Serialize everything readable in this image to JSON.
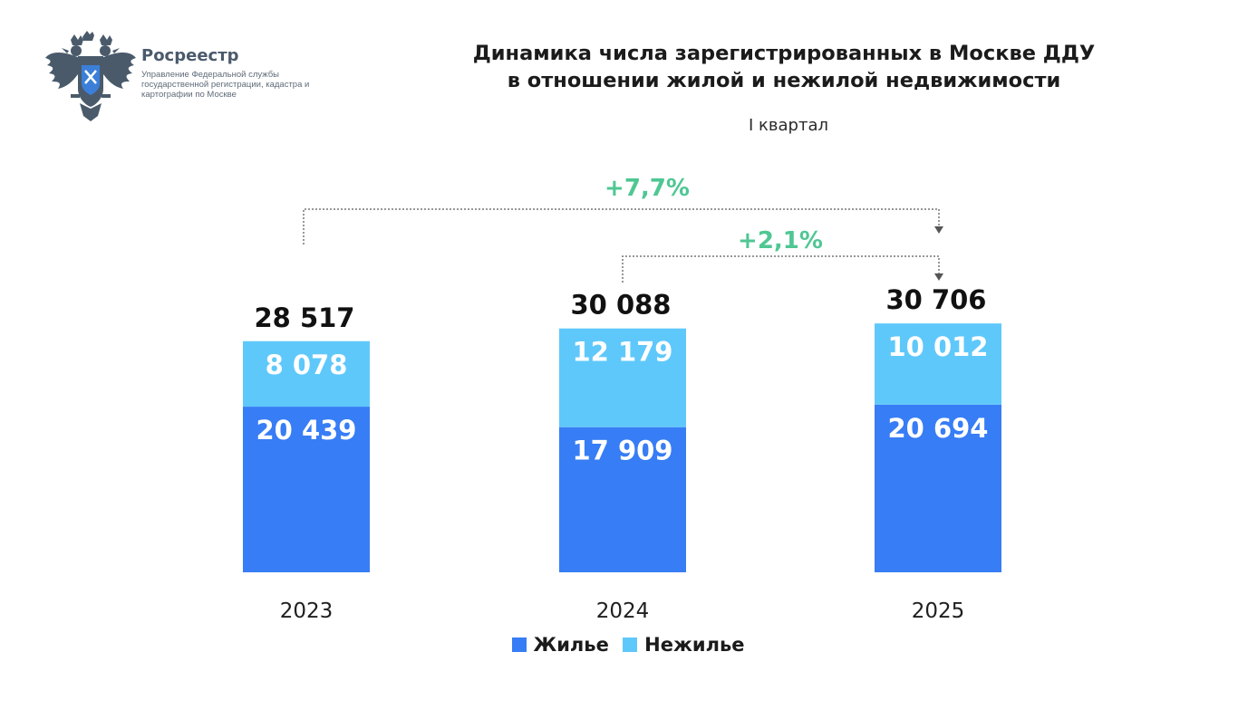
{
  "header": {
    "org_name": "Росреестр",
    "org_description": "Управление Федеральной службы государственной регистрации, кадастра и картографии по Москве"
  },
  "chart_data": {
    "type": "bar",
    "stacked": true,
    "title_line1": "Динамика числа зарегистрированных в Москве ДДУ",
    "title_line2": "в отношении жилой и нежилой недвижимости",
    "subtitle": "I квартал",
    "categories": [
      "2023",
      "2024",
      "2025"
    ],
    "series": [
      {
        "name": "Жилье",
        "values": [
          20439,
          17909,
          20694
        ],
        "labels": [
          "20 439",
          "17 909",
          "20 694"
        ],
        "color": "#377df5"
      },
      {
        "name": "Нежилье",
        "values": [
          8078,
          12179,
          10012
        ],
        "labels": [
          "8 078",
          "12 179",
          "10 012"
        ],
        "color": "#5fc8fb"
      }
    ],
    "totals": [
      28517,
      30088,
      30706
    ],
    "total_labels": [
      "28 517",
      "30 088",
      "30 706"
    ],
    "growth_annotations": [
      {
        "label": "+7,7%",
        "from": "2023",
        "to": "2025"
      },
      {
        "label": "+2,1%",
        "from": "2024",
        "to": "2025"
      }
    ],
    "legend_position": "bottom",
    "grid": false,
    "annotation_color": "#4fc793"
  }
}
